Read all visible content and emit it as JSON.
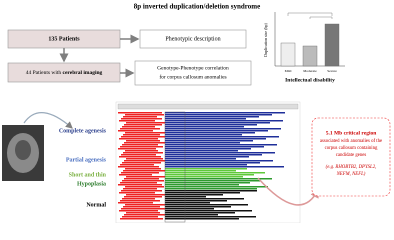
{
  "header": {
    "title": "8p inverted duplication/deletion syndrome"
  },
  "flow": {
    "patients_total": "135 Patients",
    "phenotype": "Phenotypic description",
    "patients_imaging": [
      "44 Patients with ",
      "cerebral imaging"
    ],
    "correlation": [
      "Genotype-Phenotype correlation ",
      "for corpus callosum anomalies"
    ]
  },
  "mini_chart": {
    "y_label": "Duplication size (bp)",
    "x_label": "Intellectual disability",
    "categories": [
      "Mild",
      "Moderate",
      "Severe"
    ]
  },
  "groups": [
    "Complete agenesis",
    "Partial agenesis",
    "Short and thin",
    "Hypoplasia",
    "Normal"
  ],
  "callout": {
    "lines": [
      "5.1 Mb critical region",
      "associated with anomalies of the",
      "corpus callosum containing",
      "candidate genes"
    ],
    "genes": [
      "(e.g. RHOBTB2, DPYSL2,",
      "NEFM, NEFL)"
    ]
  }
}
